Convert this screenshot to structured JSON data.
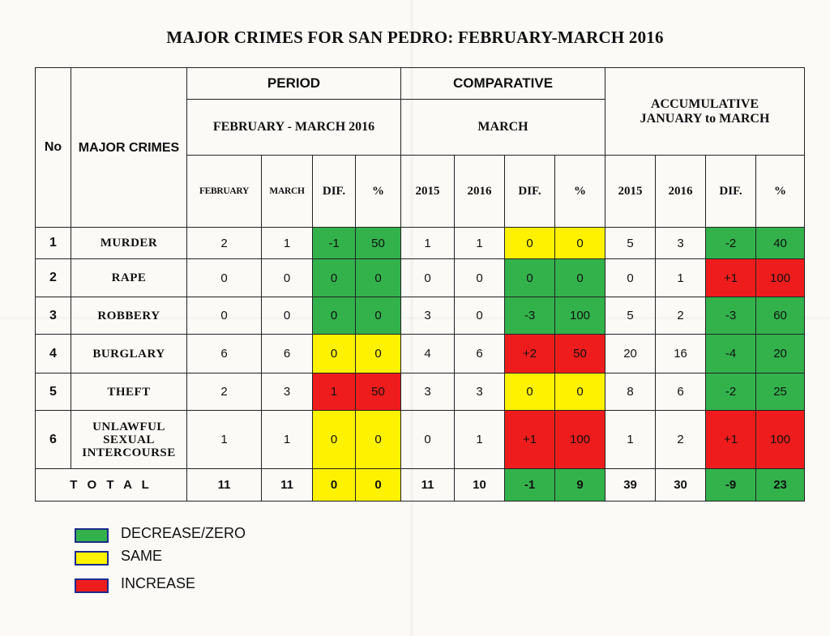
{
  "title": "MAJOR CRIMES FOR SAN PEDRO: FEBRUARY-MARCH 2016",
  "headers": {
    "no": "No",
    "major_crimes": "MAJOR CRIMES",
    "period": "PERIOD",
    "period_sub": "FEBRUARY - MARCH  2016",
    "comparative": "COMPARATIVE",
    "comparative_sub": "MARCH",
    "accumulative": "ACCUMULATIVE JANUARY to MARCH",
    "columns": [
      "FEBRUARY",
      "MARCH",
      "DIF.",
      "%",
      "2015",
      "2016",
      "DIF.",
      "%",
      "2015",
      "2016",
      "DIF.",
      "%"
    ]
  },
  "colors": {
    "decrease_zero": "#33b24c",
    "same": "#fef200",
    "increase": "#ee1c1c"
  },
  "rows": [
    {
      "no": "1",
      "crime": "MURDER",
      "values": [
        "2",
        "1",
        "-1",
        "50",
        "1",
        "1",
        "0",
        "0",
        "5",
        "3",
        "-2",
        "40"
      ],
      "status": [
        "",
        "",
        "g",
        "g",
        "",
        "",
        "y",
        "y",
        "",
        "",
        "g",
        "g"
      ]
    },
    {
      "no": "2",
      "crime": "RAPE",
      "values": [
        "0",
        "0",
        "0",
        "0",
        "0",
        "0",
        "0",
        "0",
        "0",
        "1",
        "+1",
        "100"
      ],
      "status": [
        "",
        "",
        "g",
        "g",
        "",
        "",
        "g",
        "g",
        "",
        "",
        "r",
        "r"
      ]
    },
    {
      "no": "3",
      "crime": "ROBBERY",
      "values": [
        "0",
        "0",
        "0",
        "0",
        "3",
        "0",
        "-3",
        "100",
        "5",
        "2",
        "-3",
        "60"
      ],
      "status": [
        "",
        "",
        "g",
        "g",
        "",
        "",
        "g",
        "g",
        "",
        "",
        "g",
        "g"
      ]
    },
    {
      "no": "4",
      "crime": "BURGLARY",
      "values": [
        "6",
        "6",
        "0",
        "0",
        "4",
        "6",
        "+2",
        "50",
        "20",
        "16",
        "-4",
        "20"
      ],
      "status": [
        "",
        "",
        "y",
        "y",
        "",
        "",
        "r",
        "r",
        "",
        "",
        "g",
        "g"
      ]
    },
    {
      "no": "5",
      "crime": "THEFT",
      "values": [
        "2",
        "3",
        "1",
        "50",
        "3",
        "3",
        "0",
        "0",
        "8",
        "6",
        "-2",
        "25"
      ],
      "status": [
        "",
        "",
        "r",
        "r",
        "",
        "",
        "y",
        "y",
        "",
        "",
        "g",
        "g"
      ]
    },
    {
      "no": "6",
      "crime": "UNLAWFUL SEXUAL INTERCOURSE",
      "values": [
        "1",
        "1",
        "0",
        "0",
        "0",
        "1",
        "+1",
        "100",
        "1",
        "2",
        "+1",
        "100"
      ],
      "status": [
        "",
        "",
        "y",
        "y",
        "",
        "",
        "r",
        "r",
        "",
        "",
        "r",
        "r"
      ]
    }
  ],
  "total": {
    "label": "T O T A L",
    "values": [
      "11",
      "11",
      "0",
      "0",
      "11",
      "10",
      "-1",
      "9",
      "39",
      "30",
      "-9",
      "23"
    ],
    "status": [
      "",
      "",
      "y",
      "y",
      "",
      "",
      "g",
      "g",
      "",
      "",
      "g",
      "g"
    ]
  },
  "legend": [
    {
      "label": "DECREASE/ZERO",
      "color": "#33b24c"
    },
    {
      "label": "SAME",
      "color": "#fef200"
    },
    {
      "label": "INCREASE",
      "color": "#ee1c1c"
    }
  ]
}
